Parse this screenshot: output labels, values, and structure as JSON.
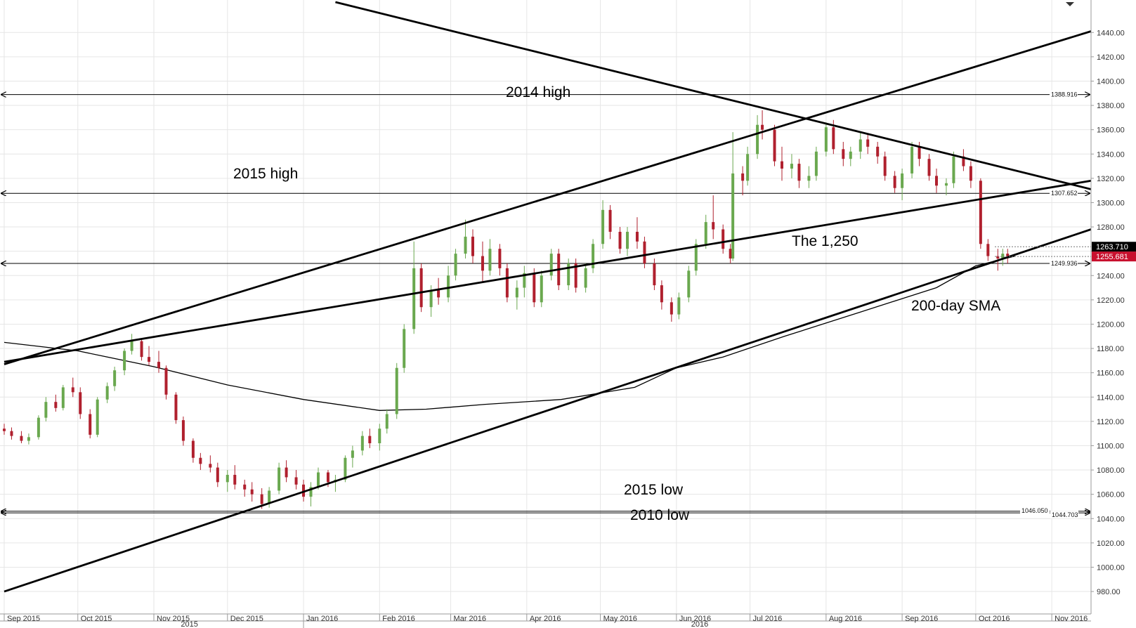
{
  "chart_data": {
    "type": "candlestick",
    "ylim": [
      965,
      1465
    ],
    "y_ticks": [
      980,
      1000,
      1020,
      1040,
      1060,
      1080,
      1100,
      1120,
      1140,
      1160,
      1180,
      1200,
      1220,
      1240,
      1260,
      1280,
      1300,
      1320,
      1340,
      1360,
      1380,
      1400,
      1420,
      1440
    ],
    "x_months": [
      "Sep 2015",
      "Oct 2015",
      "Nov 2015",
      "Dec 2015",
      "Jan 2016",
      "Feb 2016",
      "Mar 2016",
      "Apr 2016",
      "May 2016",
      "Jun 2016",
      "Jul 2016",
      "Aug 2016",
      "Sep 2016",
      "Oct 2016",
      "Nov 2016"
    ],
    "x_years": [
      "2015",
      "2016"
    ],
    "horizontal_levels": [
      {
        "value": 1388.916,
        "label": "1388.916",
        "annotation": "2014 high"
      },
      {
        "value": 1307.652,
        "label": "1307.652",
        "annotation": "2015 high"
      },
      {
        "value": 1249.936,
        "label": "1249.936",
        "annotation": "The 1,250"
      },
      {
        "value": 1046.05,
        "label": "1046.050",
        "annotation": "2015 low"
      },
      {
        "value": 1044.703,
        "label": "1044.703",
        "annotation": "2010 low"
      }
    ],
    "sma_annotation": "200-day SMA",
    "price_tags": [
      {
        "value": 1263.71,
        "label": "1263.710",
        "color": "#000000"
      },
      {
        "value": 1255.681,
        "label": "1255.681",
        "color": "#c8102e"
      }
    ],
    "trendlines": [
      {
        "from": [
          "2015-09-01",
          1169
        ],
        "to": [
          "2016-11-17",
          1318
        ]
      },
      {
        "from": [
          "2015-09-01",
          980
        ],
        "to": [
          "2016-11-17",
          1278
        ]
      },
      {
        "from": [
          "2016-01-14",
          1465
        ],
        "to": [
          "2016-11-17",
          1311
        ]
      },
      {
        "from": [
          "2015-09-01",
          1167
        ],
        "to": [
          "2016-11-17",
          1441
        ]
      }
    ],
    "sma_200": [
      [
        "2015-09-01",
        1185
      ],
      [
        "2015-10-01",
        1178
      ],
      [
        "2015-11-01",
        1165
      ],
      [
        "2015-12-01",
        1150
      ],
      [
        "2016-01-01",
        1138
      ],
      [
        "2016-02-01",
        1129
      ],
      [
        "2016-02-20",
        1130
      ],
      [
        "2016-03-15",
        1134
      ],
      [
        "2016-04-15",
        1138
      ],
      [
        "2016-05-15",
        1148
      ],
      [
        "2016-06-01",
        1164
      ],
      [
        "2016-06-20",
        1173
      ],
      [
        "2016-07-15",
        1190
      ],
      [
        "2016-08-15",
        1210
      ],
      [
        "2016-09-15",
        1230
      ],
      [
        "2016-10-01",
        1248
      ],
      [
        "2016-10-17",
        1256
      ]
    ],
    "candles": [
      [
        "2015-09-01",
        1114,
        1118,
        1109,
        1112
      ],
      [
        "2015-09-04",
        1112,
        1115,
        1105,
        1108
      ],
      [
        "2015-09-08",
        1108,
        1112,
        1102,
        1104
      ],
      [
        "2015-09-11",
        1104,
        1110,
        1101,
        1107
      ],
      [
        "2015-09-15",
        1107,
        1125,
        1105,
        1123
      ],
      [
        "2015-09-18",
        1123,
        1140,
        1120,
        1136
      ],
      [
        "2015-09-22",
        1136,
        1142,
        1128,
        1131
      ],
      [
        "2015-09-25",
        1131,
        1150,
        1129,
        1148
      ],
      [
        "2015-09-29",
        1148,
        1156,
        1140,
        1144
      ],
      [
        "2015-10-02",
        1144,
        1148,
        1122,
        1126
      ],
      [
        "2015-10-06",
        1126,
        1130,
        1106,
        1109
      ],
      [
        "2015-10-09",
        1109,
        1140,
        1107,
        1138
      ],
      [
        "2015-10-13",
        1138,
        1152,
        1135,
        1149
      ],
      [
        "2015-10-16",
        1149,
        1165,
        1145,
        1162
      ],
      [
        "2015-10-20",
        1162,
        1180,
        1158,
        1178
      ],
      [
        "2015-10-23",
        1178,
        1192,
        1175,
        1186
      ],
      [
        "2015-10-27",
        1186,
        1188,
        1170,
        1173
      ],
      [
        "2015-10-30",
        1173,
        1182,
        1166,
        1169
      ],
      [
        "2015-11-03",
        1169,
        1178,
        1160,
        1164
      ],
      [
        "2015-11-06",
        1164,
        1166,
        1138,
        1142
      ],
      [
        "2015-11-10",
        1142,
        1144,
        1118,
        1121
      ],
      [
        "2015-11-13",
        1121,
        1124,
        1100,
        1104
      ],
      [
        "2015-11-17",
        1104,
        1106,
        1086,
        1090
      ],
      [
        "2015-11-20",
        1090,
        1094,
        1080,
        1085
      ],
      [
        "2015-11-24",
        1085,
        1092,
        1078,
        1082
      ],
      [
        "2015-11-27",
        1082,
        1086,
        1066,
        1070
      ],
      [
        "2015-12-01",
        1070,
        1080,
        1062,
        1076
      ],
      [
        "2015-12-04",
        1076,
        1084,
        1064,
        1068
      ],
      [
        "2015-12-08",
        1068,
        1072,
        1058,
        1064
      ],
      [
        "2015-12-11",
        1064,
        1070,
        1054,
        1060
      ],
      [
        "2015-12-15",
        1060,
        1065,
        1048,
        1052
      ],
      [
        "2015-12-18",
        1052,
        1066,
        1049,
        1063
      ],
      [
        "2015-12-22",
        1063,
        1086,
        1060,
        1082
      ],
      [
        "2015-12-25",
        1082,
        1088,
        1070,
        1074
      ],
      [
        "2015-12-29",
        1074,
        1080,
        1064,
        1068
      ],
      [
        "2016-01-01",
        1068,
        1072,
        1054,
        1058
      ],
      [
        "2016-01-04",
        1058,
        1070,
        1050,
        1066
      ],
      [
        "2016-01-07",
        1066,
        1082,
        1064,
        1078
      ],
      [
        "2016-01-11",
        1078,
        1080,
        1066,
        1070
      ],
      [
        "2016-01-14",
        1070,
        1076,
        1062,
        1072
      ],
      [
        "2016-01-18",
        1072,
        1092,
        1070,
        1090
      ],
      [
        "2016-01-21",
        1090,
        1100,
        1082,
        1096
      ],
      [
        "2016-01-25",
        1096,
        1112,
        1092,
        1108
      ],
      [
        "2016-01-28",
        1108,
        1114,
        1098,
        1102
      ],
      [
        "2016-02-01",
        1102,
        1118,
        1096,
        1114
      ],
      [
        "2016-02-04",
        1114,
        1130,
        1110,
        1126
      ],
      [
        "2016-02-08",
        1126,
        1168,
        1122,
        1164
      ],
      [
        "2016-02-11",
        1164,
        1200,
        1160,
        1196
      ],
      [
        "2016-02-15",
        1196,
        1268,
        1192,
        1246
      ],
      [
        "2016-02-18",
        1246,
        1250,
        1210,
        1214
      ],
      [
        "2016-02-22",
        1214,
        1232,
        1206,
        1228
      ],
      [
        "2016-02-25",
        1228,
        1238,
        1216,
        1222
      ],
      [
        "2016-02-29",
        1222,
        1248,
        1218,
        1240
      ],
      [
        "2016-03-03",
        1240,
        1262,
        1236,
        1258
      ],
      [
        "2016-03-07",
        1258,
        1286,
        1254,
        1272
      ],
      [
        "2016-03-10",
        1272,
        1278,
        1250,
        1256
      ],
      [
        "2016-03-14",
        1256,
        1268,
        1234,
        1244
      ],
      [
        "2016-03-17",
        1244,
        1270,
        1240,
        1262
      ],
      [
        "2016-03-21",
        1262,
        1266,
        1240,
        1246
      ],
      [
        "2016-03-24",
        1246,
        1250,
        1218,
        1222
      ],
      [
        "2016-03-28",
        1222,
        1236,
        1212,
        1230
      ],
      [
        "2016-03-31",
        1230,
        1248,
        1222,
        1242
      ],
      [
        "2016-04-04",
        1242,
        1246,
        1214,
        1218
      ],
      [
        "2016-04-07",
        1218,
        1244,
        1214,
        1240
      ],
      [
        "2016-04-11",
        1240,
        1262,
        1236,
        1258
      ],
      [
        "2016-04-14",
        1258,
        1262,
        1228,
        1232
      ],
      [
        "2016-04-18",
        1232,
        1254,
        1228,
        1250
      ],
      [
        "2016-04-21",
        1250,
        1254,
        1226,
        1230
      ],
      [
        "2016-04-25",
        1230,
        1250,
        1226,
        1246
      ],
      [
        "2016-04-28",
        1246,
        1270,
        1242,
        1266
      ],
      [
        "2016-05-02",
        1266,
        1302,
        1262,
        1294
      ],
      [
        "2016-05-05",
        1294,
        1298,
        1270,
        1276
      ],
      [
        "2016-05-09",
        1276,
        1280,
        1258,
        1262
      ],
      [
        "2016-05-12",
        1262,
        1280,
        1256,
        1276
      ],
      [
        "2016-05-16",
        1276,
        1288,
        1262,
        1268
      ],
      [
        "2016-05-19",
        1268,
        1272,
        1246,
        1250
      ],
      [
        "2016-05-23",
        1250,
        1254,
        1228,
        1232
      ],
      [
        "2016-05-26",
        1232,
        1236,
        1212,
        1218
      ],
      [
        "2016-05-30",
        1218,
        1222,
        1202,
        1208
      ],
      [
        "2016-06-02",
        1208,
        1226,
        1204,
        1222
      ],
      [
        "2016-06-06",
        1222,
        1248,
        1218,
        1244
      ],
      [
        "2016-06-09",
        1244,
        1270,
        1240,
        1266
      ],
      [
        "2016-06-13",
        1266,
        1290,
        1262,
        1284
      ],
      [
        "2016-06-16",
        1284,
        1306,
        1270,
        1278
      ],
      [
        "2016-06-20",
        1278,
        1282,
        1258,
        1262
      ],
      [
        "2016-06-23",
        1262,
        1266,
        1250,
        1254
      ],
      [
        "2016-06-24",
        1254,
        1358,
        1252,
        1324
      ],
      [
        "2016-06-28",
        1324,
        1330,
        1306,
        1318
      ],
      [
        "2016-06-30",
        1318,
        1346,
        1314,
        1340
      ],
      [
        "2016-07-04",
        1340,
        1372,
        1336,
        1364
      ],
      [
        "2016-07-06",
        1364,
        1376,
        1352,
        1360
      ],
      [
        "2016-07-11",
        1360,
        1364,
        1330,
        1334
      ],
      [
        "2016-07-14",
        1334,
        1346,
        1318,
        1328
      ],
      [
        "2016-07-18",
        1328,
        1340,
        1320,
        1332
      ],
      [
        "2016-07-21",
        1332,
        1336,
        1312,
        1318
      ],
      [
        "2016-07-25",
        1318,
        1330,
        1312,
        1322
      ],
      [
        "2016-07-28",
        1322,
        1346,
        1318,
        1342
      ],
      [
        "2016-08-01",
        1342,
        1366,
        1338,
        1362
      ],
      [
        "2016-08-04",
        1362,
        1368,
        1340,
        1344
      ],
      [
        "2016-08-08",
        1344,
        1350,
        1330,
        1336
      ],
      [
        "2016-08-11",
        1336,
        1346,
        1330,
        1342
      ],
      [
        "2016-08-15",
        1342,
        1358,
        1336,
        1352
      ],
      [
        "2016-08-18",
        1352,
        1356,
        1340,
        1346
      ],
      [
        "2016-08-22",
        1346,
        1350,
        1332,
        1338
      ],
      [
        "2016-08-25",
        1338,
        1342,
        1318,
        1322
      ],
      [
        "2016-08-29",
        1322,
        1326,
        1308,
        1312
      ],
      [
        "2016-09-01",
        1312,
        1328,
        1302,
        1324
      ],
      [
        "2016-09-05",
        1324,
        1350,
        1320,
        1346
      ],
      [
        "2016-09-08",
        1346,
        1350,
        1330,
        1336
      ],
      [
        "2016-09-12",
        1336,
        1340,
        1318,
        1322
      ],
      [
        "2016-09-15",
        1322,
        1328,
        1308,
        1314
      ],
      [
        "2016-09-19",
        1314,
        1320,
        1306,
        1316
      ],
      [
        "2016-09-22",
        1316,
        1342,
        1312,
        1338
      ],
      [
        "2016-09-26",
        1338,
        1344,
        1326,
        1330
      ],
      [
        "2016-09-29",
        1330,
        1334,
        1312,
        1318
      ],
      [
        "2016-10-03",
        1318,
        1320,
        1262,
        1266
      ],
      [
        "2016-10-06",
        1266,
        1270,
        1252,
        1256
      ],
      [
        "2016-10-10",
        1256,
        1262,
        1244,
        1254
      ],
      [
        "2016-10-12",
        1254,
        1262,
        1248,
        1258
      ],
      [
        "2016-10-14",
        1258,
        1262,
        1250,
        1255.681
      ]
    ]
  }
}
